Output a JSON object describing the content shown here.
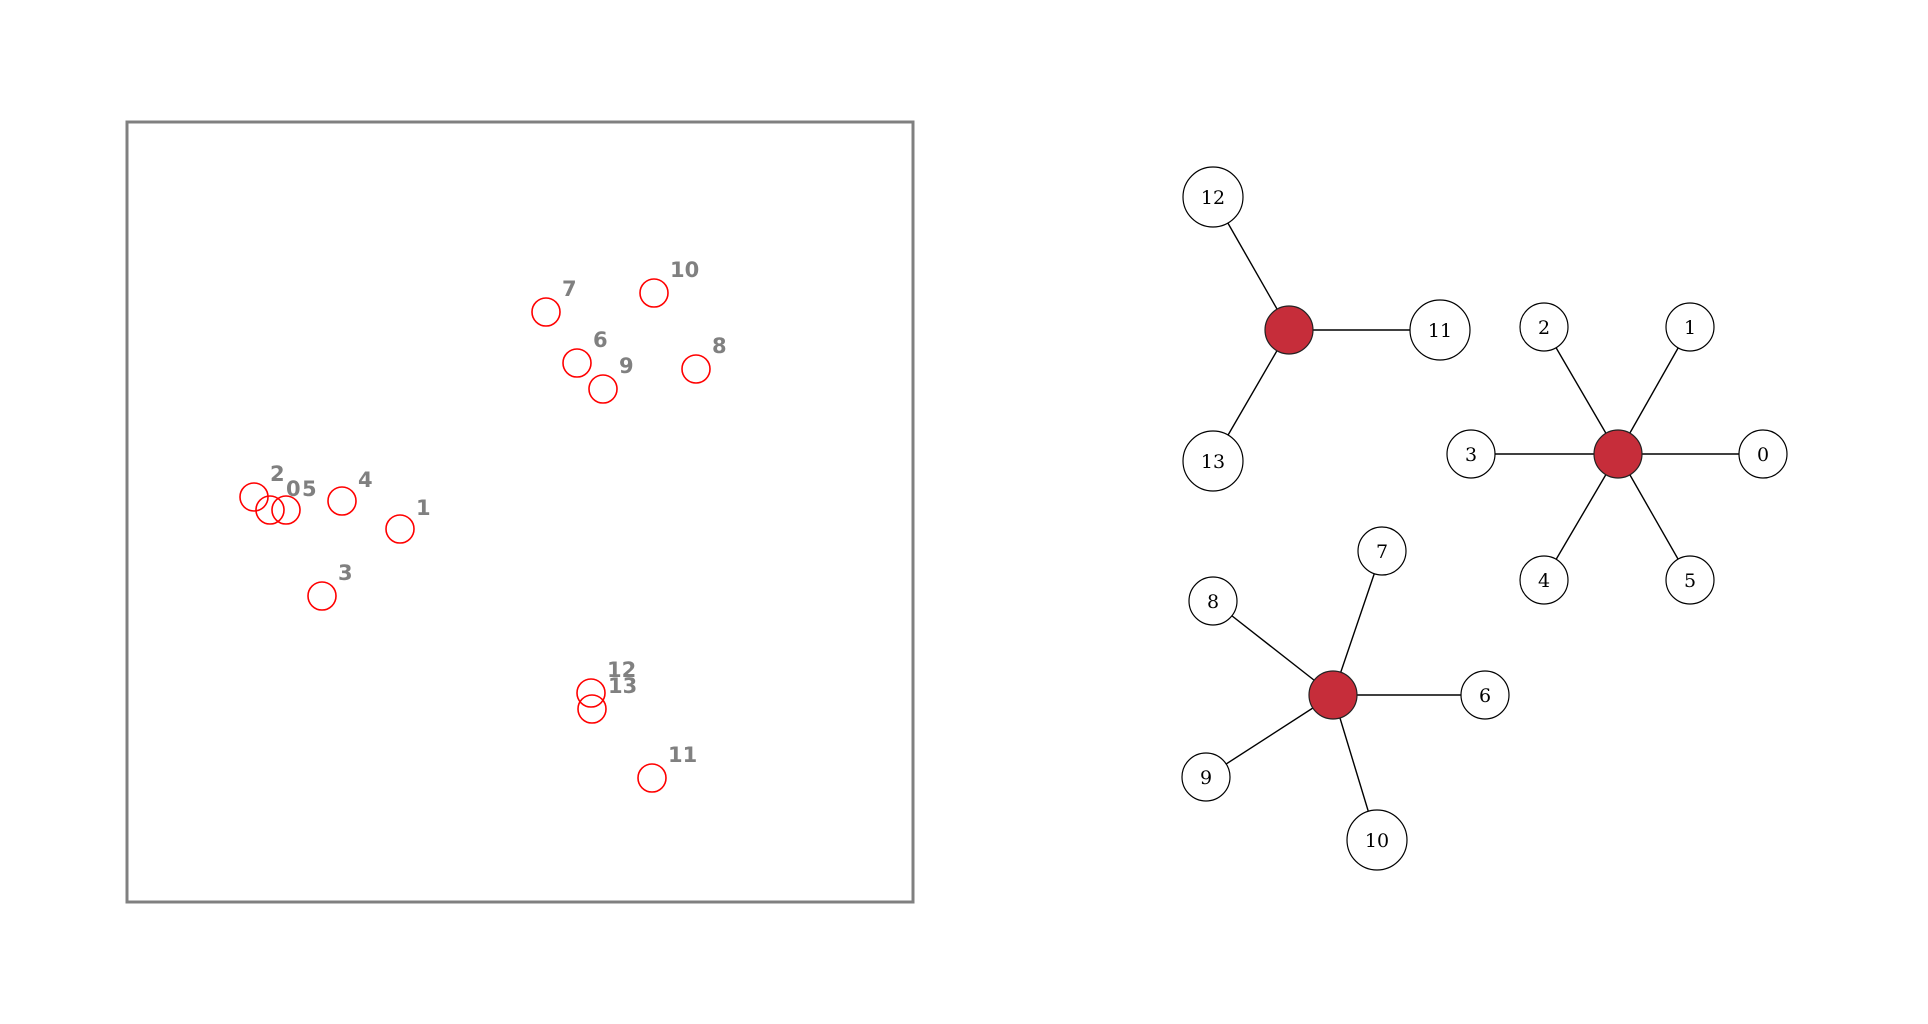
{
  "colors": {
    "frame": "#808080",
    "scatter_marker": "#ff0000",
    "scatter_label": "#808080",
    "hub_fill": "#c62d3a",
    "hub_stroke": "#222222",
    "leaf_fill": "#ffffff",
    "edge": "#000000"
  },
  "scatter": {
    "points": [
      {
        "id": "0",
        "label": "0"
      },
      {
        "id": "1",
        "label": "1"
      },
      {
        "id": "2",
        "label": "2"
      },
      {
        "id": "3",
        "label": "3"
      },
      {
        "id": "4",
        "label": "4"
      },
      {
        "id": "5",
        "label": "5"
      },
      {
        "id": "6",
        "label": "6"
      },
      {
        "id": "7",
        "label": "7"
      },
      {
        "id": "8",
        "label": "8"
      },
      {
        "id": "9",
        "label": "9"
      },
      {
        "id": "10",
        "label": "10"
      },
      {
        "id": "11",
        "label": "11"
      },
      {
        "id": "12",
        "label": "12"
      },
      {
        "id": "13",
        "label": "13"
      }
    ]
  },
  "graph": {
    "clusters": [
      {
        "hub": "hub-a",
        "leaves": [
          "0",
          "1",
          "2",
          "3",
          "4",
          "5"
        ]
      },
      {
        "hub": "hub-b",
        "leaves": [
          "6",
          "7",
          "8",
          "9",
          "10"
        ]
      },
      {
        "hub": "hub-c",
        "leaves": [
          "11",
          "12",
          "13"
        ]
      }
    ]
  }
}
